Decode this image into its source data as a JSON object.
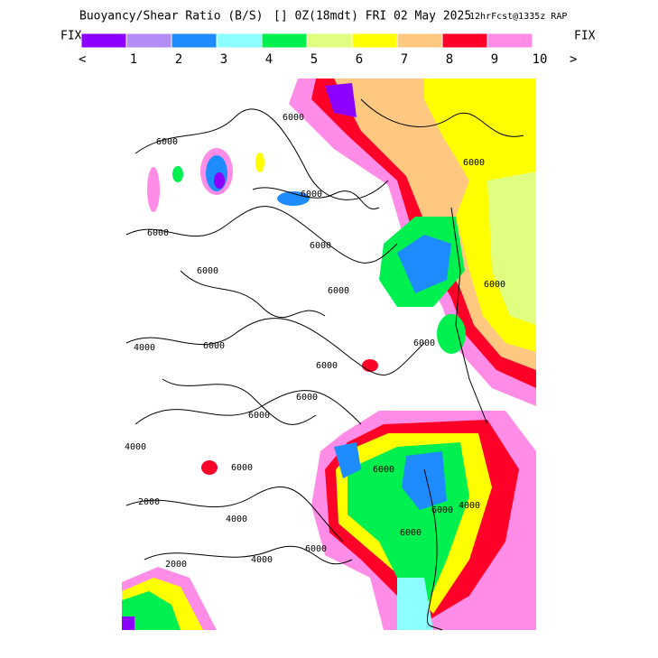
{
  "header": {
    "title": "Buoyancy/Shear Ratio (B/S)",
    "time": "[] 0Z(18mdt) FRI 02 May 2025",
    "forecast": "12hrFcst@1335z RAP"
  },
  "legend": {
    "left": "FIX",
    "right": "FIX",
    "prev": "<",
    "next": ">",
    "colors": [
      "#8c00ff",
      "#b48cf5",
      "#1e8cff",
      "#8cffff",
      "#00f050",
      "#e0ff80",
      "#ffff00",
      "#ffc880",
      "#ff0028",
      "#ff8ce6"
    ],
    "labels": [
      "1",
      "2",
      "3",
      "4",
      "5",
      "6",
      "7",
      "8",
      "9",
      "10"
    ]
  },
  "map": {
    "contour_labels": [
      "6000",
      "6000",
      "6000",
      "6000",
      "6000",
      "6000",
      "4000",
      "6000",
      "6000",
      "6000",
      "6000",
      "6000",
      "4000",
      "2000",
      "4000",
      "2000",
      "4000",
      "6000",
      "6000",
      "6000",
      "6000",
      "6000",
      "6000",
      "6000",
      "6000",
      "4000"
    ]
  }
}
